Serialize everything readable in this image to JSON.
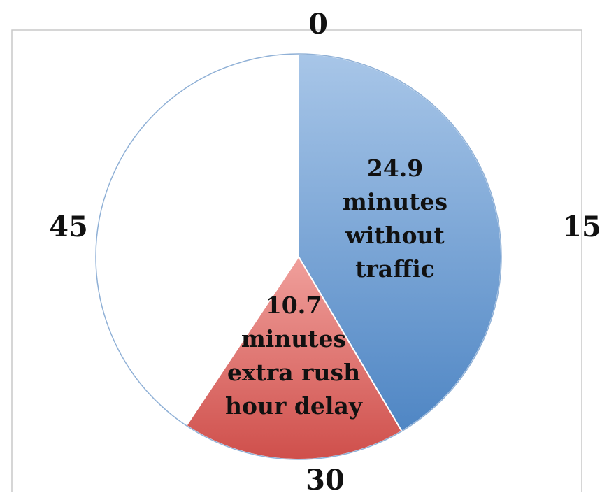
{
  "chart_data": {
    "type": "pie",
    "slices": [
      {
        "value": 24.9,
        "label_lines": [
          "24.9",
          "minutes",
          "without",
          "traffic"
        ],
        "color_light": "#a8c6e8",
        "color_dark": "#4f86c4"
      },
      {
        "value": 10.7,
        "label_lines": [
          "10.7",
          "minutes",
          "extra rush",
          "hour delay"
        ],
        "color_light": "#f0a09c",
        "color_dark": "#cf4f4b"
      },
      {
        "value": 24.4,
        "label_lines": [],
        "color_light": "#ffffff",
        "color_dark": "#ffffff"
      }
    ],
    "total": 60,
    "start_angle_deg": 0,
    "direction": "clockwise",
    "clock_labels": [
      "0",
      "15",
      "30",
      "45"
    ],
    "legend": "none"
  }
}
